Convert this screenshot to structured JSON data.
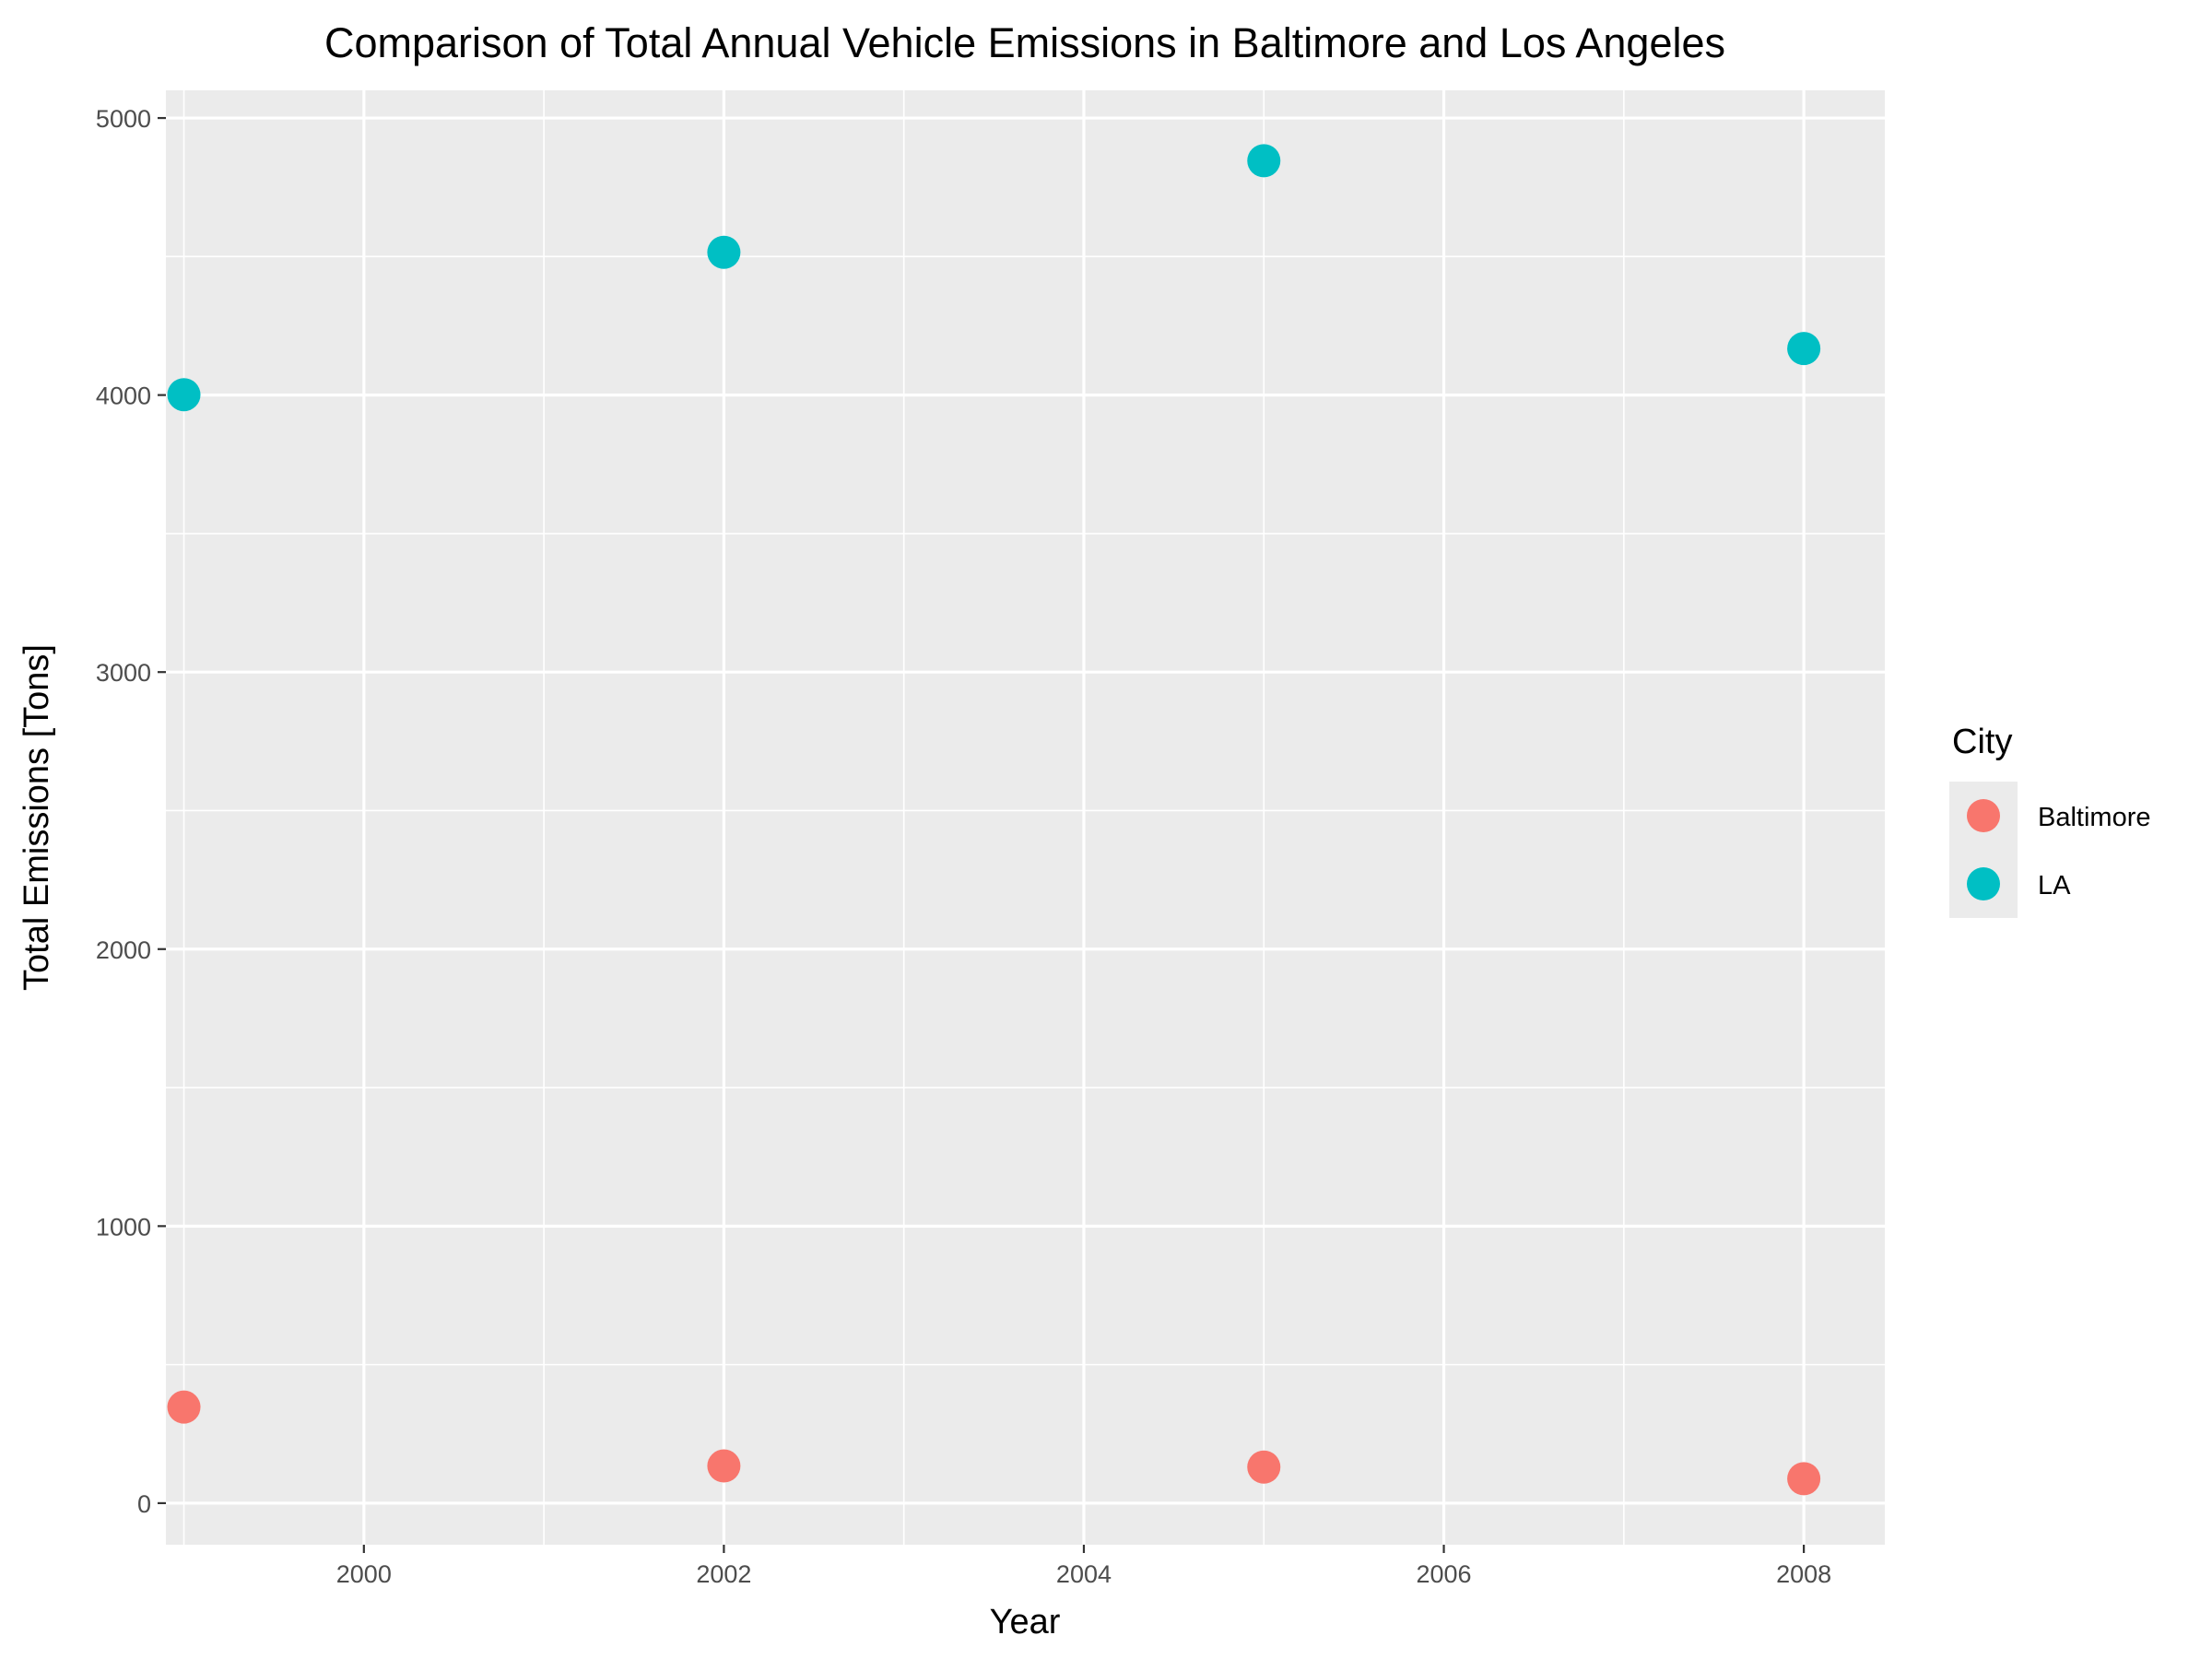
{
  "chart_data": {
    "type": "scatter",
    "title": "Comparison of Total Annual Vehicle Emissions in Baltimore and Los Angeles",
    "xlabel": "Year",
    "ylabel": "Total Emissions [Tons]",
    "xlim": [
      1998.9,
      2008.45
    ],
    "ylim": [
      -150,
      5100
    ],
    "x_ticks": [
      2000,
      2002,
      2004,
      2006,
      2008
    ],
    "y_ticks": [
      0,
      1000,
      2000,
      3000,
      4000,
      5000
    ],
    "grid": true,
    "legend": {
      "title": "City",
      "position": "right"
    },
    "series": [
      {
        "name": "Baltimore",
        "color": "#F8766D",
        "x": [
          1999,
          2002,
          2005,
          2008
        ],
        "y": [
          346.8,
          134.3,
          130.4,
          88.3
        ]
      },
      {
        "name": "LA",
        "color": "#00BFC4",
        "x": [
          1999,
          2002,
          2005,
          2008
        ],
        "y": [
          4001.4,
          4515.4,
          4846.0,
          4167.9
        ]
      }
    ]
  }
}
